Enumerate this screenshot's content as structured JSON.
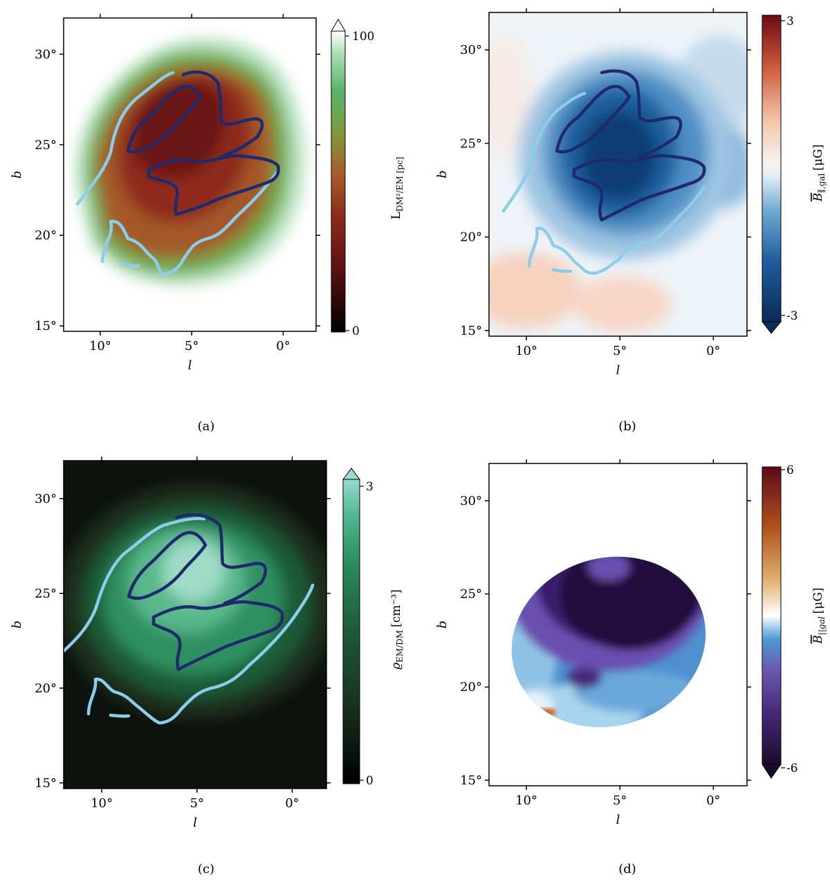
{
  "chart_data": [
    {
      "panel": "(a)",
      "type": "heatmap",
      "xlabel": "l",
      "ylabel": "b",
      "xlim": [
        12,
        -1.8
      ],
      "ylim": [
        14.7,
        32
      ],
      "xticks": [
        "10°",
        "5°",
        "0°"
      ],
      "xtick_values": [
        10,
        5,
        0
      ],
      "yticks": [
        "15°",
        "20°",
        "25°",
        "30°"
      ],
      "ytick_values": [
        15,
        20,
        25,
        30
      ],
      "colorbar": {
        "label": "L_DM²/EM [pc]",
        "label_main": "L",
        "label_sub": "DM²/EM [pc]",
        "min_label": "0",
        "max_label": "100",
        "min": 0,
        "max": 100,
        "extend": "max",
        "colormap": [
          "#000000",
          "#5a0f12",
          "#8c2a1c",
          "#a85a2a",
          "#7f9a3a",
          "#58b36a",
          "#a8dcb0",
          "#ffffff"
        ]
      },
      "contours": [
        {
          "name": "dark-blue",
          "color": "#1f2a6b"
        },
        {
          "name": "light-blue",
          "color": "#8ccdeb"
        }
      ]
    },
    {
      "panel": "(b)",
      "type": "heatmap",
      "xlabel": "l",
      "ylabel": "b",
      "xlim": [
        12,
        -1.8
      ],
      "ylim": [
        14.7,
        32
      ],
      "xticks": [
        "10°",
        "5°",
        "0°"
      ],
      "xtick_values": [
        10,
        5,
        0
      ],
      "yticks": [
        "15°",
        "20°",
        "25°",
        "30°"
      ],
      "ytick_values": [
        15,
        20,
        25,
        30
      ],
      "colorbar": {
        "label": "B‾∥,gal [μG]",
        "label_main": "B",
        "label_sub": "∥,gal",
        "label_unit": "[μG]",
        "min_label": "-3",
        "max_label": "3",
        "min": -3,
        "max": 3,
        "extend": "min",
        "colormap": [
          "#0b2a55",
          "#1f5e9f",
          "#6ea8d2",
          "#cfe3f0",
          "#f7f7f7",
          "#f3c3a8",
          "#d2603f",
          "#6b0a12"
        ]
      },
      "contours": [
        {
          "name": "dark-blue",
          "color": "#1f2a6b"
        },
        {
          "name": "light-blue",
          "color": "#8ccdeb"
        }
      ]
    },
    {
      "panel": "(c)",
      "type": "heatmap",
      "xlabel": "l",
      "ylabel": "b",
      "xlim": [
        12,
        -1.8
      ],
      "ylim": [
        14.7,
        32
      ],
      "xticks": [
        "10°",
        "5°",
        "0°"
      ],
      "xtick_values": [
        10,
        5,
        0
      ],
      "yticks": [
        "15°",
        "20°",
        "25°",
        "30°"
      ],
      "ytick_values": [
        15,
        20,
        25,
        30
      ],
      "colorbar": {
        "label": "ϱ_EM/DM [cm⁻³]",
        "label_main": "ϱ",
        "label_sub": "EM/DM",
        "label_unit": "[cm⁻³]",
        "min_label": "0",
        "max_label": "3",
        "min": 0,
        "max": 3,
        "extend": "max",
        "colormap": [
          "#000000",
          "#16301f",
          "#1e5a38",
          "#2a8a5c",
          "#4fb891",
          "#9ad8d2"
        ]
      },
      "contours": [
        {
          "name": "dark-blue",
          "color": "#1f2a6b"
        },
        {
          "name": "light-blue",
          "color": "#8ccdeb"
        }
      ]
    },
    {
      "panel": "(d)",
      "type": "heatmap",
      "xlabel": "l",
      "ylabel": "b",
      "xlim": [
        12,
        -1.8
      ],
      "ylim": [
        14.7,
        32
      ],
      "xticks": [
        "10°",
        "5°",
        "0°"
      ],
      "xtick_values": [
        10,
        5,
        0
      ],
      "yticks": [
        "15°",
        "20°",
        "25°",
        "30°"
      ],
      "ytick_values": [
        15,
        20,
        25,
        30
      ],
      "colorbar": {
        "label": "B‾||gal [μG]",
        "label_main": "B",
        "label_sub": "||gal",
        "label_unit": "[μG]",
        "min_label": "-6",
        "max_label": "6",
        "min": -6,
        "max": 6,
        "extend": "min",
        "colormap": [
          "#1a0a2e",
          "#4a2a7a",
          "#6a5ab0",
          "#4a9ad2",
          "#bfe3ef",
          "#ffffff",
          "#e0b070",
          "#b0501a",
          "#5a0a1a"
        ]
      }
    }
  ]
}
